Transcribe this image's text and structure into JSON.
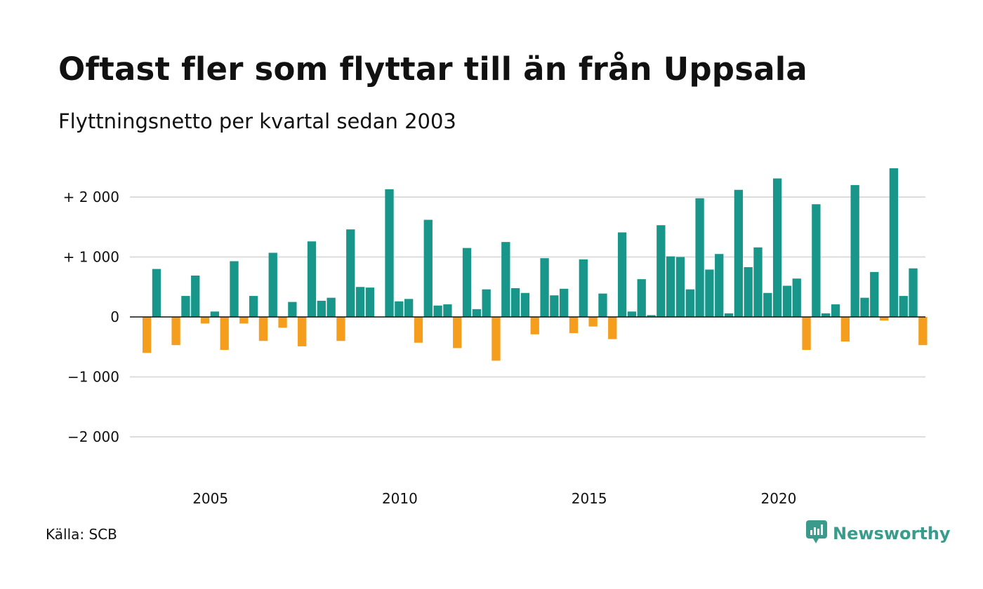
{
  "header": {
    "title": "Oftast fler som flyttar till än från Uppsala",
    "subtitle": "Flyttningsnetto per kvartal sedan 2003"
  },
  "footer": {
    "source": "Källa: SCB",
    "brand": "Newsworthy"
  },
  "colors": {
    "positive": "#18968a",
    "negative": "#f59e1d",
    "grid": "#dddddd",
    "brand": "#3a9b8c"
  },
  "icons": {
    "brand": "newsworthy-logo-icon"
  },
  "chart_data": {
    "type": "bar",
    "title": "Oftast fler som flyttar till än från Uppsala",
    "subtitle": "Flyttningsnetto per kvartal sedan 2003",
    "xlabel": "",
    "ylabel": "",
    "ylim": [
      -2000,
      2500
    ],
    "y_ticks": [
      2000,
      1000,
      0,
      -1000,
      -2000
    ],
    "y_tick_labels": [
      "+ 2 000",
      "+ 1 000",
      "0",
      "−1 000",
      "−2 000"
    ],
    "x_range": [
      2003,
      2024
    ],
    "x_ticks": [
      2005,
      2010,
      2015,
      2020
    ],
    "x_tick_labels": [
      "2005",
      "2010",
      "2015",
      "2020"
    ],
    "grid": true,
    "legend": "none",
    "series": [
      {
        "values": [
          -600,
          800,
          0,
          -470,
          350,
          690,
          -110,
          90,
          -550,
          930,
          -110,
          350,
          -400,
          1070,
          -180,
          250,
          -490,
          1260,
          270,
          320,
          -400,
          1460,
          500,
          490,
          0,
          2130,
          260,
          300,
          -430,
          1620,
          190,
          210,
          -520,
          1150,
          130,
          460,
          -730,
          1250,
          480,
          400,
          -290,
          980,
          360,
          470,
          -270,
          960,
          -160,
          390,
          -370,
          1410,
          90,
          630,
          30,
          1530,
          1010,
          1000,
          460,
          1980,
          790,
          1050,
          60,
          2120,
          830,
          1160,
          400,
          2310,
          520,
          640,
          -550,
          1880,
          60,
          210,
          -410,
          2200,
          320,
          750,
          -60,
          2480,
          350,
          810,
          -470
        ]
      }
    ]
  }
}
